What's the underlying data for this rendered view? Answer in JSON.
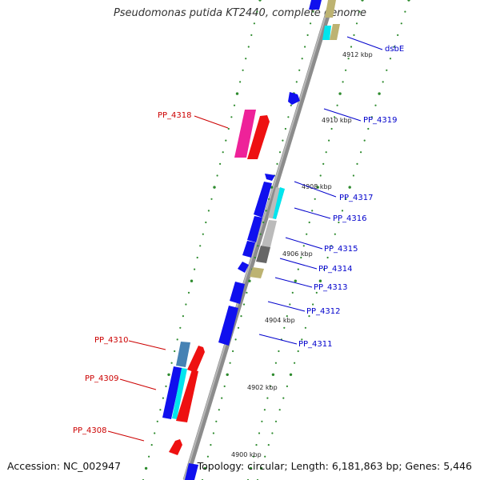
{
  "title": "Pseudomonas putida KT2440, complete genome",
  "accession_label": "Accession: NC_002947",
  "summary_label": "Topology: circular; Length: 6,181,863 bp; Genes: 5,446",
  "colors": {
    "backbone": "#8c8c8c",
    "tick_dots": "#2e8b2e",
    "label_forward": "#cc0000",
    "label_reverse": "#0000cc",
    "blue": "#1010ee",
    "red": "#ee1111",
    "magenta": "#ee2299",
    "cyan": "#00e5ee",
    "khaki": "#bdb372",
    "grey": "#bbbbbb",
    "darkgrey": "#666666",
    "steelblue": "#4682b4"
  },
  "tick_labels": [
    "4912 kbp",
    "4910 kbp",
    "4908 kbp",
    "4906 kbp",
    "4904 kbp",
    "4902 kbp",
    "4900 kbp"
  ],
  "gene_labels": {
    "dsbE": "dsbE",
    "PP_4319": "PP_4319",
    "PP_4318": "PP_4318",
    "PP_4317": "PP_4317",
    "PP_4316": "PP_4316",
    "PP_4315": "PP_4315",
    "PP_4314": "PP_4314",
    "PP_4313": "PP_4313",
    "PP_4312": "PP_4312",
    "PP_4311": "PP_4311",
    "PP_4310": "PP_4310",
    "PP_4309": "PP_4309",
    "PP_4308": "PP_4308"
  }
}
